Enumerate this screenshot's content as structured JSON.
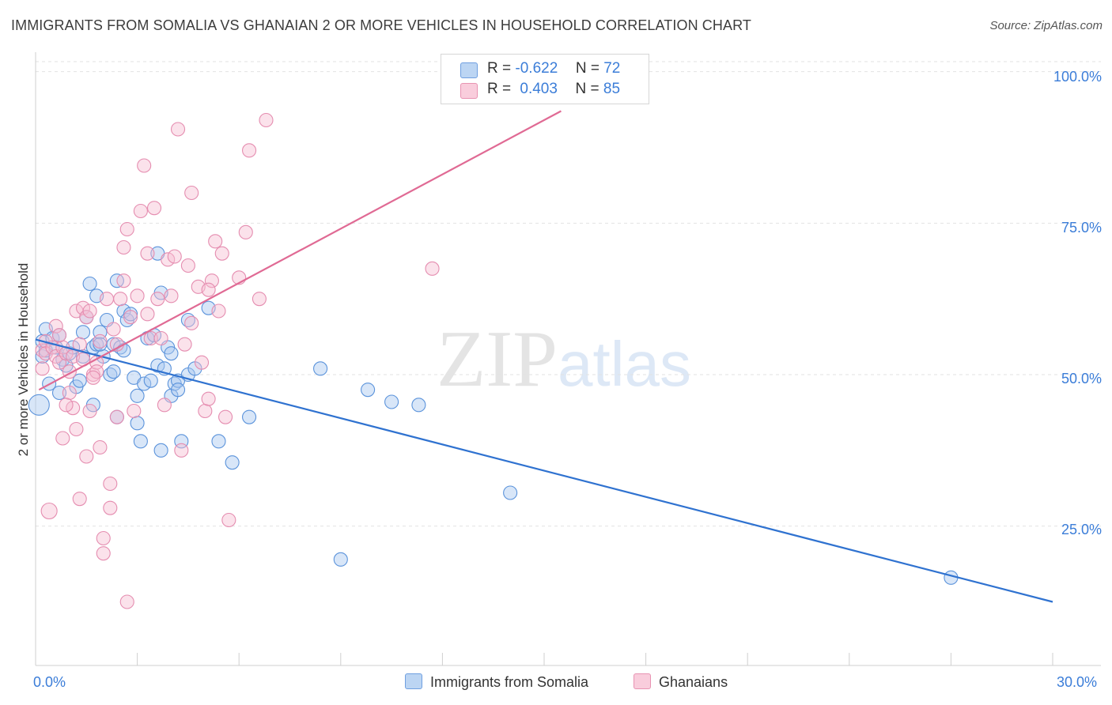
{
  "title": "IMMIGRANTS FROM SOMALIA VS GHANAIAN 2 OR MORE VEHICLES IN HOUSEHOLD CORRELATION CHART",
  "source": "Source: ZipAtlas.com",
  "watermark": {
    "zip": "ZIP",
    "atlas": "atlas"
  },
  "colors": {
    "blue": "#4a86d6",
    "blue_fill": "#a9c8ef",
    "blue_line": "#2f72d0",
    "pink": "#e07fa3",
    "pink_fill": "#f7bfd2",
    "pink_line": "#e06a94",
    "tick_text": "#3b7dd8",
    "grid": "#dddddd"
  },
  "legend": {
    "rows": [
      {
        "r_label": "R =",
        "r_value": "-0.622",
        "n_label": "N =",
        "n_value": "72"
      },
      {
        "r_label": "R =",
        "r_value": "0.403",
        "n_label": "N =",
        "n_value": "85"
      }
    ]
  },
  "bottom_legend": [
    "Immigrants from Somalia",
    "Ghanaians"
  ],
  "chart_data": {
    "type": "scatter",
    "title": "IMMIGRANTS FROM SOMALIA VS GHANAIAN 2 OR MORE VEHICLES IN HOUSEHOLD CORRELATION CHART",
    "xlabel": "",
    "ylabel": "2 or more Vehicles in Household",
    "xlim": [
      0,
      30
    ],
    "ylim": [
      2,
      104
    ],
    "x_tick_labels": [
      "0.0%",
      "30.0%"
    ],
    "y_tick_values": [
      25,
      50,
      75,
      100
    ],
    "y_tick_labels": [
      "25.0%",
      "50.0%",
      "75.0%",
      "100.0%"
    ],
    "grid": true,
    "legend_position": "top-center",
    "series": [
      {
        "name": "Immigrants from Somalia",
        "color": "#4a86d6",
        "r": -0.622,
        "n": 72,
        "trend": [
          [
            0,
            55.8
          ],
          [
            30,
            12.5
          ]
        ],
        "points": [
          [
            0.1,
            45.0
          ],
          [
            0.2,
            55.5
          ],
          [
            0.2,
            53.0
          ],
          [
            0.3,
            57.5
          ],
          [
            0.3,
            54.0
          ],
          [
            0.4,
            48.5
          ],
          [
            0.5,
            56.0
          ],
          [
            0.6,
            54.5
          ],
          [
            0.7,
            56.5
          ],
          [
            0.7,
            47.0
          ],
          [
            0.8,
            52.5
          ],
          [
            1.0,
            53.5
          ],
          [
            1.1,
            54.5
          ],
          [
            1.2,
            48.0
          ],
          [
            1.3,
            49.0
          ],
          [
            1.4,
            53.0
          ],
          [
            1.4,
            57.0
          ],
          [
            1.5,
            59.5
          ],
          [
            1.6,
            65.0
          ],
          [
            1.7,
            54.5
          ],
          [
            1.7,
            45.0
          ],
          [
            1.8,
            63.0
          ],
          [
            1.8,
            55.0
          ],
          [
            1.9,
            57.0
          ],
          [
            2.0,
            53.0
          ],
          [
            2.2,
            50.0
          ],
          [
            2.1,
            59.0
          ],
          [
            2.3,
            55.0
          ],
          [
            2.3,
            50.5
          ],
          [
            2.4,
            43.0
          ],
          [
            2.4,
            65.5
          ],
          [
            2.5,
            54.5
          ],
          [
            2.6,
            54.0
          ],
          [
            2.6,
            60.5
          ],
          [
            2.7,
            59.0
          ],
          [
            2.8,
            60.0
          ],
          [
            2.9,
            49.5
          ],
          [
            3.0,
            46.5
          ],
          [
            3.0,
            42.0
          ],
          [
            3.1,
            39.0
          ],
          [
            3.2,
            48.5
          ],
          [
            3.3,
            56.0
          ],
          [
            3.4,
            49.0
          ],
          [
            3.5,
            56.5
          ],
          [
            3.6,
            51.5
          ],
          [
            3.6,
            70.0
          ],
          [
            3.7,
            37.5
          ],
          [
            3.7,
            63.5
          ],
          [
            3.8,
            51.0
          ],
          [
            3.9,
            54.5
          ],
          [
            4.0,
            46.5
          ],
          [
            4.0,
            53.5
          ],
          [
            4.1,
            48.5
          ],
          [
            4.2,
            49.0
          ],
          [
            4.2,
            47.5
          ],
          [
            4.3,
            39.0
          ],
          [
            4.5,
            50.0
          ],
          [
            4.5,
            59.0
          ],
          [
            4.7,
            51.0
          ],
          [
            5.1,
            61.0
          ],
          [
            5.4,
            39.0
          ],
          [
            5.8,
            35.5
          ],
          [
            6.3,
            43.0
          ],
          [
            8.4,
            51.0
          ],
          [
            9.0,
            19.5
          ],
          [
            9.8,
            47.5
          ],
          [
            10.5,
            45.5
          ],
          [
            11.3,
            45.0
          ],
          [
            14.0,
            30.5
          ],
          [
            27.0,
            16.5
          ],
          [
            0.9,
            51.5
          ],
          [
            1.9,
            55.0
          ]
        ]
      },
      {
        "name": "Ghanaians",
        "color": "#e07fa3",
        "r": 0.403,
        "n": 85,
        "trend": [
          [
            0.1,
            47.5
          ],
          [
            15.5,
            93.5
          ]
        ],
        "points": [
          [
            0.2,
            54.0
          ],
          [
            0.2,
            51.0
          ],
          [
            0.3,
            55.5
          ],
          [
            0.3,
            53.5
          ],
          [
            0.4,
            27.5
          ],
          [
            0.5,
            54.5
          ],
          [
            0.6,
            53.0
          ],
          [
            0.6,
            58.0
          ],
          [
            0.7,
            52.0
          ],
          [
            0.8,
            54.5
          ],
          [
            0.8,
            39.5
          ],
          [
            0.9,
            53.5
          ],
          [
            1.0,
            47.0
          ],
          [
            1.0,
            50.5
          ],
          [
            1.1,
            53.0
          ],
          [
            1.1,
            44.5
          ],
          [
            1.2,
            60.5
          ],
          [
            1.2,
            41.0
          ],
          [
            1.3,
            29.5
          ],
          [
            1.3,
            55.0
          ],
          [
            1.4,
            61.0
          ],
          [
            1.5,
            36.5
          ],
          [
            1.5,
            59.5
          ],
          [
            1.6,
            44.0
          ],
          [
            1.6,
            60.5
          ],
          [
            1.7,
            50.0
          ],
          [
            1.8,
            52.0
          ],
          [
            1.8,
            50.5
          ],
          [
            1.9,
            38.0
          ],
          [
            1.9,
            55.5
          ],
          [
            2.0,
            23.0
          ],
          [
            2.0,
            20.5
          ],
          [
            2.1,
            62.5
          ],
          [
            2.2,
            32.0
          ],
          [
            2.2,
            28.0
          ],
          [
            2.3,
            57.5
          ],
          [
            2.4,
            55.0
          ],
          [
            2.5,
            62.5
          ],
          [
            2.6,
            71.0
          ],
          [
            2.6,
            65.5
          ],
          [
            2.7,
            74.0
          ],
          [
            2.7,
            12.5
          ],
          [
            2.8,
            59.5
          ],
          [
            3.0,
            63.0
          ],
          [
            3.1,
            77.0
          ],
          [
            3.2,
            84.5
          ],
          [
            3.3,
            70.0
          ],
          [
            3.4,
            56.0
          ],
          [
            3.5,
            77.5
          ],
          [
            3.6,
            62.5
          ],
          [
            3.7,
            56.0
          ],
          [
            3.8,
            45.0
          ],
          [
            3.9,
            69.0
          ],
          [
            4.0,
            63.0
          ],
          [
            4.1,
            69.5
          ],
          [
            4.2,
            90.5
          ],
          [
            4.3,
            37.5
          ],
          [
            4.4,
            55.0
          ],
          [
            4.5,
            68.0
          ],
          [
            4.6,
            80.0
          ],
          [
            4.8,
            64.5
          ],
          [
            4.9,
            52.0
          ],
          [
            5.0,
            44.0
          ],
          [
            5.1,
            46.0
          ],
          [
            5.2,
            65.5
          ],
          [
            5.3,
            72.0
          ],
          [
            5.4,
            60.5
          ],
          [
            5.5,
            70.0
          ],
          [
            5.6,
            43.0
          ],
          [
            5.7,
            26.0
          ],
          [
            6.0,
            66.0
          ],
          [
            6.2,
            73.5
          ],
          [
            6.3,
            87.0
          ],
          [
            6.6,
            62.5
          ],
          [
            6.8,
            92.0
          ],
          [
            11.7,
            67.5
          ],
          [
            5.1,
            64.0
          ],
          [
            3.3,
            60.0
          ],
          [
            1.4,
            52.5
          ],
          [
            0.9,
            45.0
          ],
          [
            2.9,
            44.0
          ],
          [
            4.6,
            58.5
          ],
          [
            1.7,
            49.5
          ],
          [
            0.7,
            56.5
          ],
          [
            2.4,
            43.0
          ]
        ]
      }
    ]
  }
}
